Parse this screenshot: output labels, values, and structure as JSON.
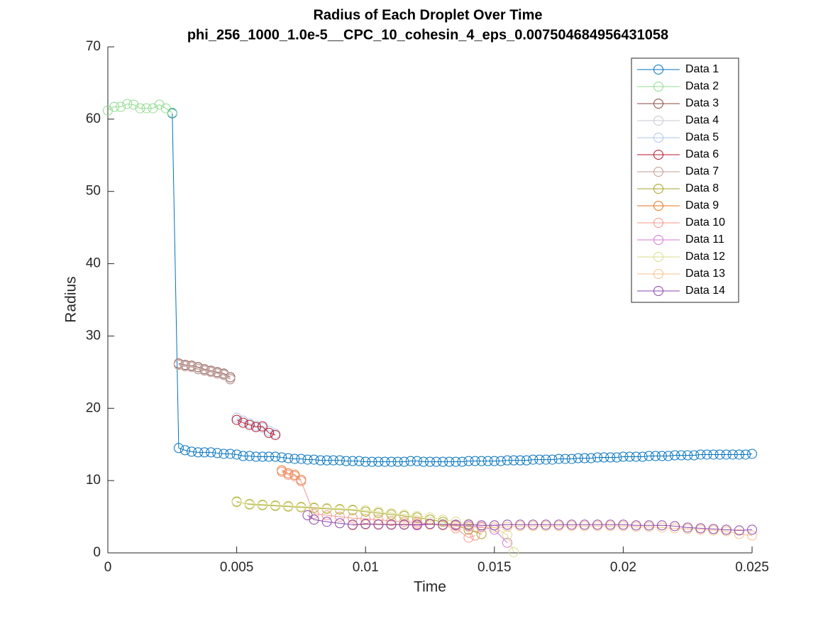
{
  "chart_data": {
    "type": "line",
    "title": "Radius of Each Droplet Over Time",
    "subtitle": "phi_256_1000_1.0e-5__CPC_10_cohesin_4_eps_0.007504684956431058",
    "x_label": "Time",
    "y_label": "Radius",
    "xlim": [
      0,
      0.025
    ],
    "xticks": [
      0,
      0.005,
      0.01,
      0.015,
      0.02,
      0.025
    ],
    "ylim": [
      0,
      70
    ],
    "yticks": [
      0,
      10,
      20,
      30,
      40,
      50,
      60,
      70
    ],
    "grid": false,
    "legend": "northeast",
    "marker": "circle",
    "series": [
      {
        "name": "Data 1",
        "color": "#0072bd",
        "x": [
          0.0025,
          0.00275,
          0.003,
          0.00325,
          0.0035,
          0.00375,
          0.004,
          0.00425,
          0.0045,
          0.00475,
          0.005,
          0.00525,
          0.0055,
          0.00575,
          0.006,
          0.00625,
          0.0065,
          0.00675,
          0.007,
          0.00725,
          0.0075,
          0.00775,
          0.008,
          0.00825,
          0.0085,
          0.00875,
          0.009,
          0.00925,
          0.0095,
          0.00975,
          0.01,
          0.01025,
          0.0105,
          0.01075,
          0.011,
          0.01125,
          0.0115,
          0.01175,
          0.012,
          0.01225,
          0.0125,
          0.01275,
          0.013,
          0.01325,
          0.0135,
          0.01375,
          0.014,
          0.01425,
          0.0145,
          0.01475,
          0.015,
          0.01525,
          0.0155,
          0.01575,
          0.016,
          0.01625,
          0.0165,
          0.01675,
          0.017,
          0.01725,
          0.0175,
          0.01775,
          0.018,
          0.01825,
          0.0185,
          0.01875,
          0.019,
          0.01925,
          0.0195,
          0.01975,
          0.02,
          0.02025,
          0.0205,
          0.02075,
          0.021,
          0.02125,
          0.0215,
          0.02175,
          0.022,
          0.02225,
          0.0225,
          0.02275,
          0.023,
          0.02325,
          0.0235,
          0.02375,
          0.024,
          0.02425,
          0.0245,
          0.02475,
          0.025
        ],
        "values": [
          60.8,
          14.5,
          14.2,
          14.0,
          13.9,
          13.9,
          13.9,
          13.8,
          13.7,
          13.7,
          13.6,
          13.4,
          13.4,
          13.3,
          13.3,
          13.3,
          13.3,
          13.2,
          13.1,
          13.0,
          13.0,
          12.9,
          12.9,
          12.8,
          12.8,
          12.8,
          12.8,
          12.7,
          12.7,
          12.7,
          12.6,
          12.6,
          12.6,
          12.6,
          12.6,
          12.6,
          12.6,
          12.7,
          12.7,
          12.6,
          12.6,
          12.6,
          12.6,
          12.6,
          12.6,
          12.6,
          12.7,
          12.7,
          12.7,
          12.7,
          12.7,
          12.7,
          12.8,
          12.8,
          12.8,
          12.8,
          12.9,
          12.9,
          12.9,
          12.9,
          13.0,
          13.0,
          13.0,
          13.1,
          13.1,
          13.1,
          13.2,
          13.2,
          13.2,
          13.2,
          13.3,
          13.3,
          13.3,
          13.3,
          13.4,
          13.4,
          13.4,
          13.4,
          13.5,
          13.5,
          13.5,
          13.5,
          13.6,
          13.6,
          13.6,
          13.6,
          13.6,
          13.6,
          13.6,
          13.6,
          13.7
        ]
      },
      {
        "name": "Data 2",
        "color": "#8fdc8f",
        "x": [
          0,
          0.00025,
          0.0005,
          0.00075,
          0.001,
          0.00125,
          0.0015,
          0.00175,
          0.002,
          0.00225,
          0.0025
        ],
        "values": [
          61.2,
          61.7,
          61.7,
          62.1,
          62.0,
          61.5,
          61.5,
          61.5,
          62.0,
          61.5,
          60.9
        ]
      },
      {
        "name": "Data 3",
        "color": "#8c4a40",
        "x": [
          0.00275,
          0.003,
          0.00325,
          0.0035,
          0.00375,
          0.004,
          0.00425,
          0.0045,
          0.00475
        ],
        "values": [
          26.2,
          26.0,
          25.9,
          25.7,
          25.4,
          25.2,
          25.0,
          24.8,
          24.3
        ]
      },
      {
        "name": "Data 4",
        "color": "#c8c8d0",
        "x": [
          0.00275,
          0.003,
          0.00325,
          0.0035,
          0.00375,
          0.004,
          0.00425,
          0.0045,
          0.00475
        ],
        "values": [
          26.1,
          25.9,
          25.8,
          25.5,
          25.3,
          25.1,
          24.9,
          24.7,
          24.1
        ]
      },
      {
        "name": "Data 5",
        "color": "#aec7e8",
        "x": [
          0.005,
          0.00525,
          0.0055,
          0.00575,
          0.006,
          0.00625,
          0.0065
        ],
        "values": [
          18.7,
          18.3,
          17.9,
          17.6,
          17.3,
          16.9,
          16.5
        ]
      },
      {
        "name": "Data 6",
        "color": "#b5172f",
        "x": [
          0.005,
          0.00525,
          0.0055,
          0.00575,
          0.006,
          0.00625,
          0.0065
        ],
        "values": [
          18.4,
          18.0,
          17.7,
          17.4,
          17.5,
          16.6,
          16.3
        ]
      },
      {
        "name": "Data 7",
        "color": "#c49c94",
        "x": [
          0.00275,
          0.003,
          0.00325,
          0.0035,
          0.00375,
          0.004,
          0.00425,
          0.0045,
          0.00475
        ],
        "values": [
          26.0,
          25.8,
          25.7,
          25.4,
          25.2,
          25.0,
          24.8,
          24.6,
          24.0
        ]
      },
      {
        "name": "Data 8",
        "color": "#a6a628",
        "x": [
          0.005,
          0.0055,
          0.006,
          0.0065,
          0.007,
          0.0075,
          0.008,
          0.0085,
          0.009,
          0.0095,
          0.01,
          0.0105,
          0.011,
          0.0115,
          0.012,
          0.0125,
          0.013,
          0.0135,
          0.014,
          0.0145
        ],
        "values": [
          7.1,
          6.7,
          6.6,
          6.5,
          6.4,
          6.3,
          6.2,
          6.1,
          6.0,
          5.9,
          5.7,
          5.5,
          5.3,
          5.1,
          4.9,
          4.6,
          4.3,
          3.8,
          3.2,
          2.6
        ]
      },
      {
        "name": "Data 9",
        "color": "#e6751e",
        "x": [
          0.00675,
          0.007,
          0.00725,
          0.0075
        ],
        "values": [
          11.4,
          11.0,
          10.8,
          10.1
        ]
      },
      {
        "name": "Data 10",
        "color": "#f4978a",
        "x": [
          0.00675,
          0.007,
          0.00725,
          0.0075,
          0.008,
          0.0085,
          0.009,
          0.0095,
          0.01,
          0.0105,
          0.011,
          0.0115,
          0.012,
          0.0125,
          0.013,
          0.0135,
          0.014,
          0.01425
        ],
        "values": [
          11.2,
          10.8,
          10.6,
          9.9,
          5.4,
          5.2,
          5.0,
          4.8,
          4.7,
          4.6,
          4.4,
          4.3,
          4.2,
          4.0,
          3.8,
          3.4,
          2.1,
          2.4
        ]
      },
      {
        "name": "Data 11",
        "color": "#d27ad2",
        "x": [
          0.0095,
          0.01,
          0.0105,
          0.011,
          0.0115,
          0.012,
          0.0125,
          0.013,
          0.0135,
          0.014,
          0.0145,
          0.015,
          0.0155
        ],
        "values": [
          3.9,
          4.0,
          4.0,
          3.9,
          3.9,
          3.8,
          3.9,
          3.9,
          3.8,
          3.7,
          3.6,
          3.2,
          1.4
        ]
      },
      {
        "name": "Data 12",
        "color": "#dbdb8d",
        "x": [
          0.005,
          0.0055,
          0.006,
          0.0065,
          0.007,
          0.0075,
          0.008,
          0.0085,
          0.009,
          0.0095,
          0.01,
          0.0105,
          0.011,
          0.0115,
          0.012,
          0.0125,
          0.013,
          0.0135,
          0.014,
          0.0145,
          0.015,
          0.0155,
          0.01575
        ],
        "values": [
          7.0,
          6.8,
          6.7,
          6.6,
          6.5,
          6.4,
          6.3,
          6.2,
          6.1,
          6.0,
          5.9,
          5.7,
          5.5,
          5.3,
          5.1,
          4.9,
          4.6,
          4.3,
          4.0,
          3.8,
          3.5,
          2.5,
          0.1
        ]
      },
      {
        "name": "Data 13",
        "color": "#f7c08a",
        "x": [
          0.0095,
          0.01,
          0.0105,
          0.011,
          0.0115,
          0.012,
          0.0125,
          0.013,
          0.0135,
          0.014,
          0.0145,
          0.015,
          0.0155,
          0.016,
          0.0165,
          0.017,
          0.0175,
          0.018,
          0.0185,
          0.019,
          0.0195,
          0.02,
          0.0205,
          0.021,
          0.0215,
          0.022,
          0.0225,
          0.023,
          0.0235,
          0.024,
          0.0245,
          0.025
        ],
        "values": [
          3.8,
          3.9,
          4.0,
          4.0,
          4.0,
          4.0,
          3.9,
          3.8,
          3.7,
          3.6,
          3.5,
          3.5,
          3.6,
          3.7,
          3.7,
          3.7,
          3.7,
          3.7,
          3.7,
          3.7,
          3.7,
          3.7,
          3.6,
          3.6,
          3.5,
          3.4,
          3.3,
          3.2,
          3.1,
          3.0,
          2.6,
          2.4
        ]
      },
      {
        "name": "Data 14",
        "color": "#8e44a8",
        "x": [
          0.00775,
          0.008,
          0.0085,
          0.009,
          0.0095,
          0.01,
          0.0105,
          0.011,
          0.0115,
          0.012,
          0.0125,
          0.013,
          0.0135,
          0.014,
          0.0145,
          0.015,
          0.0155,
          0.016,
          0.0165,
          0.017,
          0.0175,
          0.018,
          0.0185,
          0.019,
          0.0195,
          0.02,
          0.0205,
          0.021,
          0.0215,
          0.022,
          0.0225,
          0.023,
          0.0235,
          0.024,
          0.0245,
          0.025
        ],
        "values": [
          5.2,
          4.6,
          4.3,
          4.1,
          3.9,
          4.0,
          3.9,
          3.9,
          3.9,
          3.9,
          4.0,
          3.9,
          3.9,
          3.9,
          3.8,
          3.8,
          3.9,
          3.9,
          3.9,
          3.9,
          3.9,
          3.9,
          3.9,
          3.9,
          3.9,
          3.9,
          3.8,
          3.8,
          3.8,
          3.7,
          3.5,
          3.4,
          3.3,
          3.2,
          3.1,
          3.2
        ]
      }
    ]
  }
}
